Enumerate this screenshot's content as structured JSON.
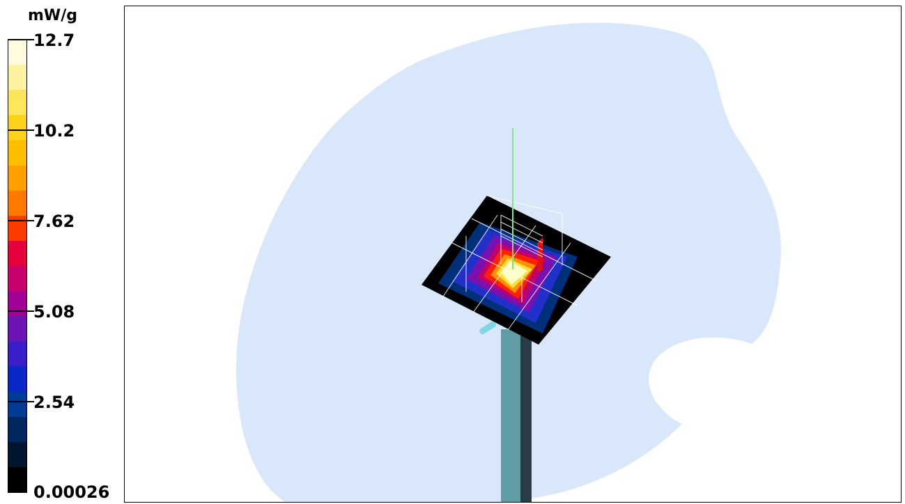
{
  "legend": {
    "unit": "mW/g",
    "ticks": [
      "12.7",
      "10.2",
      "7.62",
      "5.08",
      "2.54",
      "0.00026"
    ],
    "band_colors": [
      "#fffbe0",
      "#fff2a0",
      "#ffe55a",
      "#ffd21c",
      "#ffbf00",
      "#ff9e00",
      "#ff7800",
      "#ff3c00",
      "#e6003c",
      "#c8006e",
      "#a00096",
      "#6e14b4",
      "#3a1ec8",
      "#0a28c8",
      "#003c96",
      "#002860",
      "#001630",
      "#000000"
    ]
  },
  "scene": {
    "phantom_color": "#d8e8fa",
    "pole_color": "#5f9ca4",
    "pole_shadow_color": "#2c3c46",
    "probe_axis_color": "#7de87d",
    "scan_plane_color": "#000000",
    "hotspot_colors": [
      "#ffffc8",
      "#ffe040",
      "#ff9000",
      "#ff2000",
      "#c0006a",
      "#7a10b0",
      "#2030c8",
      "#00307a"
    ]
  }
}
